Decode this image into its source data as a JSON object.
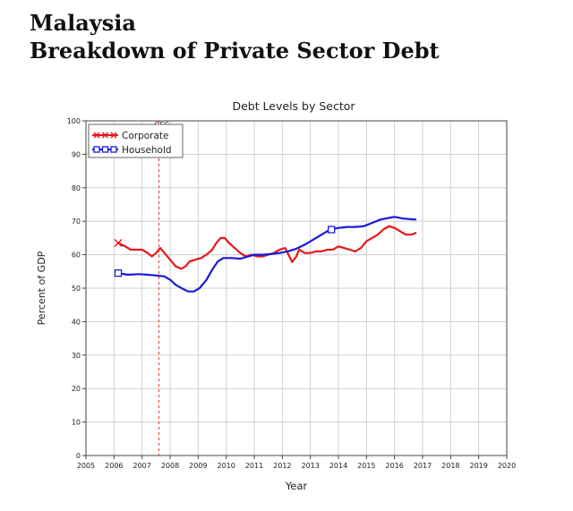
{
  "page": {
    "title_line1": "Malaysia",
    "title_line2": "Breakdown of Private Sector Debt"
  },
  "chart_data": {
    "type": "line",
    "title": "Debt Levels by Sector",
    "xlabel": "Year",
    "ylabel": "Percent of GDP",
    "xlim": [
      2005,
      2020
    ],
    "ylim": [
      0,
      100
    ],
    "x_ticks": [
      2005,
      2006,
      2007,
      2008,
      2009,
      2010,
      2011,
      2012,
      2013,
      2014,
      2015,
      2016,
      2017,
      2018,
      2019,
      2020
    ],
    "y_ticks": [
      0,
      10,
      20,
      30,
      40,
      50,
      60,
      70,
      80,
      90,
      100
    ],
    "grid": true,
    "legend_position": "top-left",
    "annotations": [
      {
        "label": "GFC",
        "x": 2007.6,
        "style": "dashed vertical line",
        "color": "#e53935"
      }
    ],
    "series": [
      {
        "name": "Corporate",
        "color": "#e8161b",
        "marker": "x",
        "points": [
          [
            2006.15,
            63.5
          ],
          [
            2006.4,
            62.5
          ],
          [
            2006.6,
            61.5
          ],
          [
            2006.8,
            61.5
          ],
          [
            2007.0,
            61.5
          ],
          [
            2007.2,
            60.5
          ],
          [
            2007.35,
            59.5
          ],
          [
            2007.5,
            60.5
          ],
          [
            2007.65,
            62.0
          ],
          [
            2007.8,
            60.5
          ],
          [
            2008.0,
            58.5
          ],
          [
            2008.2,
            56.5
          ],
          [
            2008.4,
            55.8
          ],
          [
            2008.55,
            56.5
          ],
          [
            2008.7,
            58.0
          ],
          [
            2008.9,
            58.5
          ],
          [
            2009.1,
            59.0
          ],
          [
            2009.3,
            60.0
          ],
          [
            2009.5,
            61.5
          ],
          [
            2009.65,
            63.5
          ],
          [
            2009.8,
            65.0
          ],
          [
            2009.95,
            65.0
          ],
          [
            2010.1,
            63.5
          ],
          [
            2010.3,
            62.0
          ],
          [
            2010.5,
            60.5
          ],
          [
            2010.7,
            59.5
          ],
          [
            2010.9,
            60.0
          ],
          [
            2011.1,
            59.5
          ],
          [
            2011.3,
            59.5
          ],
          [
            2011.5,
            60.0
          ],
          [
            2011.7,
            60.5
          ],
          [
            2011.9,
            61.5
          ],
          [
            2012.1,
            62.0
          ],
          [
            2012.25,
            59.5
          ],
          [
            2012.35,
            57.8
          ],
          [
            2012.5,
            59.5
          ],
          [
            2012.6,
            61.5
          ],
          [
            2012.8,
            60.5
          ],
          [
            2013.0,
            60.5
          ],
          [
            2013.2,
            61.0
          ],
          [
            2013.4,
            61.0
          ],
          [
            2013.6,
            61.5
          ],
          [
            2013.8,
            61.5
          ],
          [
            2014.0,
            62.5
          ],
          [
            2014.2,
            62.0
          ],
          [
            2014.4,
            61.5
          ],
          [
            2014.6,
            61.0
          ],
          [
            2014.8,
            62.0
          ],
          [
            2015.0,
            64.0
          ],
          [
            2015.2,
            65.0
          ],
          [
            2015.4,
            66.0
          ],
          [
            2015.6,
            67.5
          ],
          [
            2015.8,
            68.5
          ],
          [
            2016.0,
            68.0
          ],
          [
            2016.2,
            67.0
          ],
          [
            2016.4,
            66.0
          ],
          [
            2016.6,
            66.0
          ],
          [
            2016.75,
            66.5
          ]
        ]
      },
      {
        "name": "Household",
        "color": "#1a1adb",
        "marker": "square",
        "points": [
          [
            2006.15,
            54.5
          ],
          [
            2006.5,
            54.0
          ],
          [
            2006.9,
            54.2
          ],
          [
            2007.2,
            54.0
          ],
          [
            2007.5,
            53.8
          ],
          [
            2007.8,
            53.5
          ],
          [
            2008.0,
            52.5
          ],
          [
            2008.2,
            51.0
          ],
          [
            2008.45,
            49.8
          ],
          [
            2008.65,
            49.0
          ],
          [
            2008.85,
            49.0
          ],
          [
            2009.05,
            50.0
          ],
          [
            2009.3,
            52.5
          ],
          [
            2009.5,
            55.5
          ],
          [
            2009.7,
            58.0
          ],
          [
            2009.9,
            59.0
          ],
          [
            2010.2,
            59.0
          ],
          [
            2010.5,
            58.8
          ],
          [
            2010.8,
            59.5
          ],
          [
            2011.0,
            60.0
          ],
          [
            2011.3,
            60.0
          ],
          [
            2011.6,
            60.2
          ],
          [
            2011.9,
            60.5
          ],
          [
            2012.2,
            61.0
          ],
          [
            2012.5,
            61.8
          ],
          [
            2012.8,
            63.0
          ],
          [
            2013.1,
            64.5
          ],
          [
            2013.4,
            66.0
          ],
          [
            2013.7,
            67.5
          ],
          [
            2014.0,
            68.0
          ],
          [
            2014.3,
            68.3
          ],
          [
            2014.6,
            68.3
          ],
          [
            2014.9,
            68.5
          ],
          [
            2015.2,
            69.5
          ],
          [
            2015.5,
            70.5
          ],
          [
            2015.8,
            71.0
          ],
          [
            2016.0,
            71.3
          ],
          [
            2016.3,
            70.8
          ],
          [
            2016.6,
            70.6
          ],
          [
            2016.75,
            70.5
          ]
        ],
        "marker_points": [
          [
            2006.15,
            54.5
          ],
          [
            2013.75,
            67.5
          ]
        ]
      }
    ]
  }
}
